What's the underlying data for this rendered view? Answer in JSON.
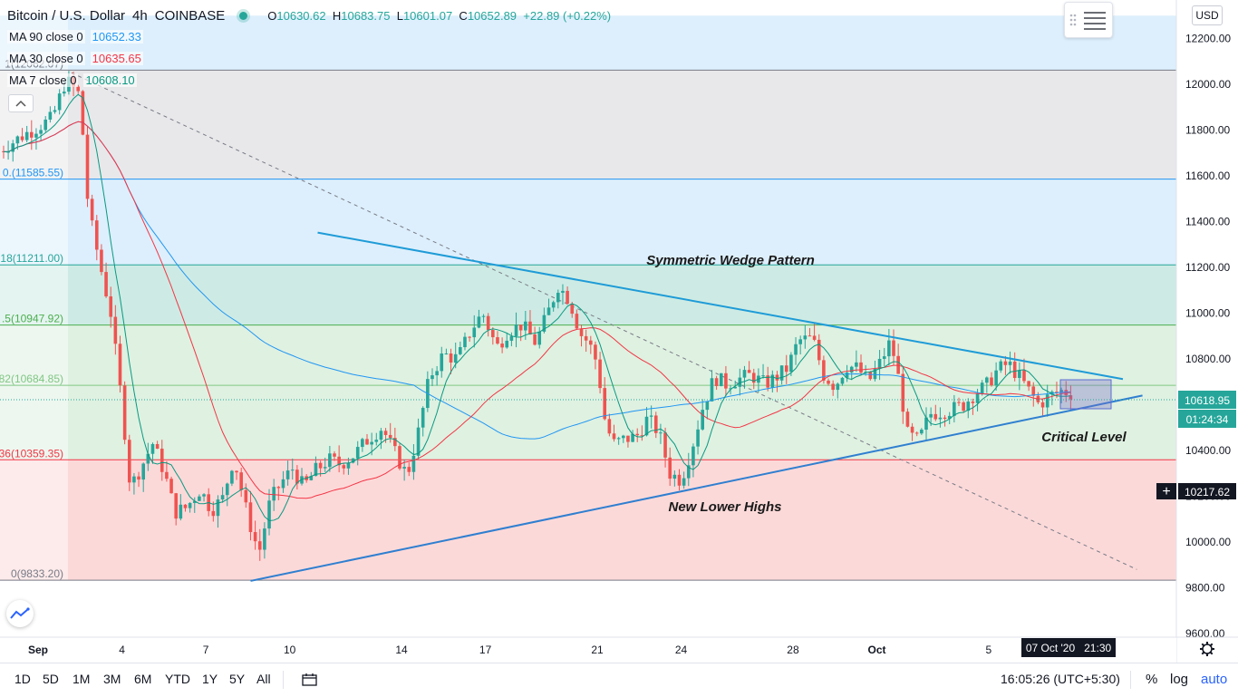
{
  "header": {
    "symbol": "Bitcoin / U.S. Dollar",
    "interval": "4h",
    "exchange": "COINBASE",
    "ohlc": {
      "o": "10630.62",
      "h": "10683.75",
      "l": "10601.07",
      "c": "10652.89",
      "change": "+22.89 (+0.22%)"
    },
    "o_label": "O",
    "h_label": "H",
    "l_label": "L",
    "c_label": "C"
  },
  "indicators": [
    {
      "label": "MA 90 close 0",
      "value": "10652.33",
      "color": "#2196f3"
    },
    {
      "label": "MA 30 close 0",
      "value": "10635.65",
      "color": "#f23645"
    },
    {
      "label": "MA 7 close 0",
      "value": "10608.10",
      "color": "#089981"
    }
  ],
  "currency_button": "USD",
  "price_tags": {
    "last_price": "10618.95",
    "countdown": "01:24:34",
    "crosshair_price": "10217.62",
    "crosshair_date": "07 Oct '20   21:30",
    "crosshair_glyph": "+"
  },
  "annotations": {
    "wedge": "Symmetric Wedge Pattern",
    "lower_highs": "New Lower Highs",
    "critical": "Critical Level"
  },
  "fib_levels": [
    {
      "label": "1(12062.07)",
      "price": 12062.07
    },
    {
      "label": "0.(11585.55)",
      "price": 11585.55
    },
    {
      "label": "18(11211.00)",
      "price": 11211.0
    },
    {
      "label": ".5(10947.92)",
      "price": 10947.92
    },
    {
      "label": "82(10684.85)",
      "price": 10684.85
    },
    {
      "label": "36(10359.35)",
      "price": 10359.35
    },
    {
      "label": "0(9833.20)",
      "price": 9833.2
    }
  ],
  "bottom_toolbar": {
    "ranges": [
      "1D",
      "5D",
      "1M",
      "3M",
      "6M",
      "YTD",
      "1Y",
      "5Y",
      "All"
    ],
    "time": "16:05:26 (UTC+5:30)",
    "percent": "%",
    "log": "log",
    "auto": "auto"
  },
  "colors": {
    "up": "#26a69a",
    "down": "#ef5350",
    "accent": "#2962ff",
    "zone_blue": "#ddeffc",
    "zone_gray": "#e8e8ea",
    "zone_teal": "#cdebe4",
    "zone_green": "#dff1e1",
    "zone_red": "#fcd9d9"
  },
  "chart_data": {
    "type": "candlestick",
    "title": "Bitcoin / U.S. Dollar, 4h, COINBASE",
    "xlabel": "",
    "ylabel": "",
    "ylim": [
      9600,
      12300
    ],
    "y_ticks": [
      9600,
      9800,
      10000,
      10200,
      10400,
      10600,
      10800,
      11000,
      11200,
      11400,
      11600,
      11800,
      12000,
      12200
    ],
    "y_tick_labels": [
      "9600.00",
      "9800.00",
      "10000.00",
      "10200.00",
      "10400.00",
      "10600.00",
      "10800.00",
      "11000.00",
      "11200.00",
      "11400.00",
      "11600.00",
      "11800.00",
      "12000.00",
      "12200.00"
    ],
    "x_ticks": [
      {
        "day": 1,
        "label": "Sep"
      },
      {
        "day": 4,
        "label": "4"
      },
      {
        "day": 7,
        "label": "7"
      },
      {
        "day": 10,
        "label": "10"
      },
      {
        "day": 14,
        "label": "14"
      },
      {
        "day": 17,
        "label": "17"
      },
      {
        "day": 21,
        "label": "21"
      },
      {
        "day": 24,
        "label": "24"
      },
      {
        "day": 28,
        "label": "28"
      },
      {
        "day": 31,
        "label": "Oct"
      },
      {
        "day": 35,
        "label": "5"
      }
    ],
    "xlim": [
      0.0,
      40.5
    ],
    "close_keypoints": [
      [
        -0.5,
        11700
      ],
      [
        0.5,
        11780
      ],
      [
        1.5,
        11850
      ],
      [
        2.0,
        12020
      ],
      [
        2.5,
        11950
      ],
      [
        2.8,
        11450
      ],
      [
        3.2,
        11220
      ],
      [
        3.6,
        11000
      ],
      [
        4.0,
        10600
      ],
      [
        4.3,
        10240
      ],
      [
        4.7,
        10330
      ],
      [
        5.1,
        10430
      ],
      [
        5.5,
        10310
      ],
      [
        5.9,
        10130
      ],
      [
        6.3,
        10150
      ],
      [
        6.8,
        10230
      ],
      [
        7.2,
        10140
      ],
      [
        7.6,
        10190
      ],
      [
        8.0,
        10370
      ],
      [
        8.5,
        10110
      ],
      [
        8.9,
        9950
      ],
      [
        9.3,
        10180
      ],
      [
        9.7,
        10260
      ],
      [
        10.1,
        10320
      ],
      [
        10.5,
        10240
      ],
      [
        10.9,
        10310
      ],
      [
        11.4,
        10360
      ],
      [
        11.8,
        10340
      ],
      [
        12.3,
        10380
      ],
      [
        12.8,
        10450
      ],
      [
        13.3,
        10500
      ],
      [
        13.8,
        10380
      ],
      [
        14.2,
        10290
      ],
      [
        14.6,
        10480
      ],
      [
        15.0,
        10720
      ],
      [
        15.5,
        10820
      ],
      [
        16.0,
        10800
      ],
      [
        16.5,
        10930
      ],
      [
        16.9,
        11000
      ],
      [
        17.4,
        10850
      ],
      [
        17.8,
        10920
      ],
      [
        18.3,
        10950
      ],
      [
        18.8,
        10870
      ],
      [
        19.2,
        10990
      ],
      [
        19.6,
        11120
      ],
      [
        20.0,
        11060
      ],
      [
        20.4,
        10910
      ],
      [
        20.7,
        10870
      ],
      [
        21.0,
        10780
      ],
      [
        21.3,
        10510
      ],
      [
        21.6,
        10430
      ],
      [
        22.0,
        10450
      ],
      [
        22.4,
        10460
      ],
      [
        22.8,
        10540
      ],
      [
        23.2,
        10480
      ],
      [
        23.6,
        10300
      ],
      [
        24.0,
        10270
      ],
      [
        24.4,
        10420
      ],
      [
        24.8,
        10600
      ],
      [
        25.2,
        10720
      ],
      [
        25.6,
        10690
      ],
      [
        26.0,
        10710
      ],
      [
        26.5,
        10730
      ],
      [
        27.0,
        10690
      ],
      [
        27.4,
        10720
      ],
      [
        27.8,
        10760
      ],
      [
        28.2,
        10880
      ],
      [
        28.7,
        10890
      ],
      [
        29.1,
        10730
      ],
      [
        29.5,
        10680
      ],
      [
        29.9,
        10770
      ],
      [
        30.3,
        10760
      ],
      [
        30.7,
        10700
      ],
      [
        31.1,
        10780
      ],
      [
        31.5,
        10880
      ],
      [
        31.8,
        10700
      ],
      [
        32.1,
        10470
      ],
      [
        32.5,
        10440
      ],
      [
        32.9,
        10560
      ],
      [
        33.3,
        10570
      ],
      [
        33.7,
        10580
      ],
      [
        34.1,
        10600
      ],
      [
        34.5,
        10650
      ],
      [
        34.9,
        10680
      ],
      [
        35.3,
        10750
      ],
      [
        35.7,
        10780
      ],
      [
        36.1,
        10720
      ],
      [
        36.5,
        10650
      ],
      [
        36.8,
        10600
      ],
      [
        37.2,
        10640
      ],
      [
        37.6,
        10660
      ],
      [
        38.0,
        10650
      ]
    ],
    "trendlines": [
      {
        "name": "upper",
        "from": [
          11.0,
          11352
        ],
        "to": [
          39.8,
          10712
        ]
      },
      {
        "name": "lower",
        "from": [
          8.6,
          9830
        ],
        "to": [
          40.5,
          10640
        ]
      },
      {
        "name": "diagonal",
        "from": [
          2.2,
          12050
        ],
        "to": [
          40.3,
          9880
        ],
        "dashed": true
      }
    ]
  }
}
